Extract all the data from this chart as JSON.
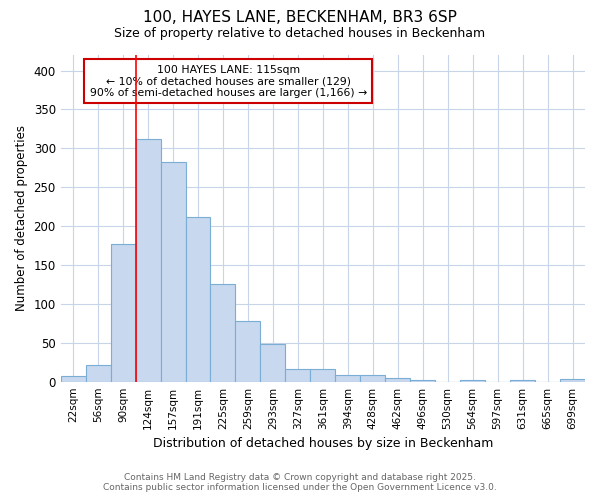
{
  "title1": "100, HAYES LANE, BECKENHAM, BR3 6SP",
  "title2": "Size of property relative to detached houses in Beckenham",
  "xlabel": "Distribution of detached houses by size in Beckenham",
  "ylabel": "Number of detached properties",
  "categories": [
    "22sqm",
    "56sqm",
    "90sqm",
    "124sqm",
    "157sqm",
    "191sqm",
    "225sqm",
    "259sqm",
    "293sqm",
    "327sqm",
    "361sqm",
    "394sqm",
    "428sqm",
    "462sqm",
    "496sqm",
    "530sqm",
    "564sqm",
    "597sqm",
    "631sqm",
    "665sqm",
    "699sqm"
  ],
  "values": [
    7,
    22,
    177,
    312,
    282,
    212,
    126,
    78,
    49,
    16,
    16,
    9,
    9,
    5,
    2,
    0,
    2,
    0,
    2,
    0,
    4
  ],
  "bar_color": "#c8d8ef",
  "bar_edge_color": "#7aaed4",
  "red_line_index": 3,
  "annotation_title": "100 HAYES LANE: 115sqm",
  "annotation_line1": "← 10% of detached houses are smaller (129)",
  "annotation_line2": "90% of semi-detached houses are larger (1,166) →",
  "annotation_box_color": "#ffffff",
  "annotation_box_edge_color": "#cc0000",
  "footer_line1": "Contains HM Land Registry data © Crown copyright and database right 2025.",
  "footer_line2": "Contains public sector information licensed under the Open Government Licence v3.0.",
  "background_color": "#ffffff",
  "plot_background_color": "#ffffff",
  "grid_color": "#c8d4e8",
  "ylim": [
    0,
    420
  ],
  "yticks": [
    0,
    50,
    100,
    150,
    200,
    250,
    300,
    350,
    400
  ]
}
